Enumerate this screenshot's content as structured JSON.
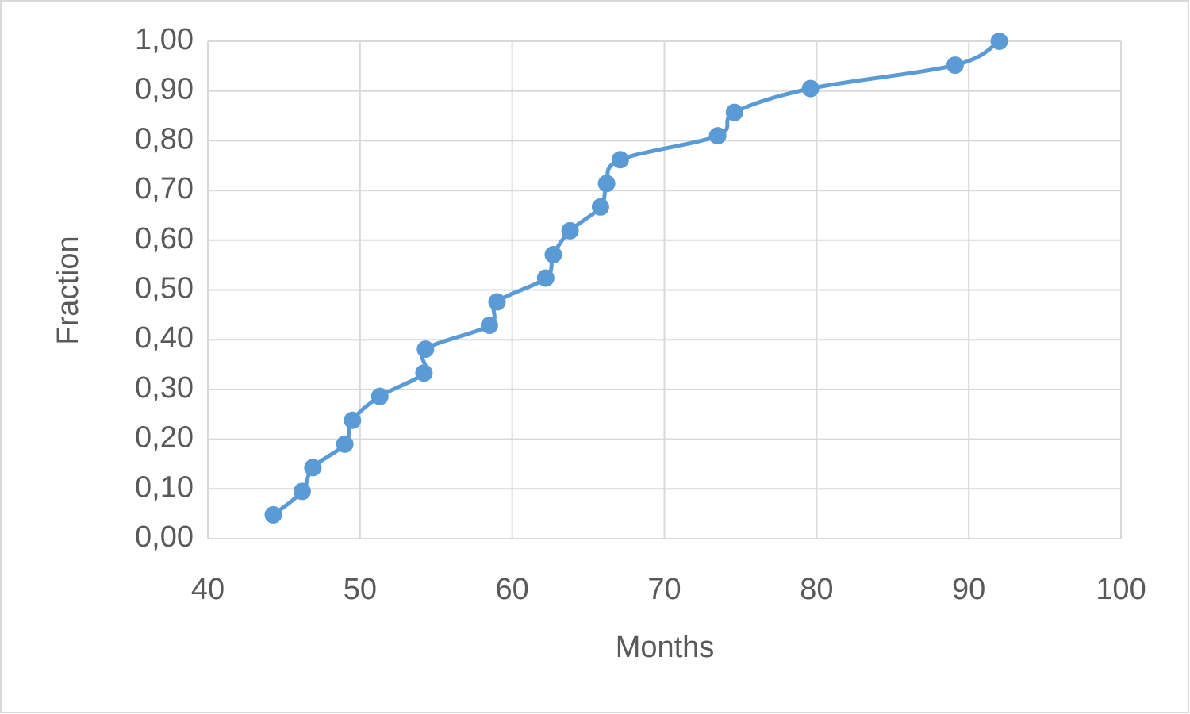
{
  "chart_data": {
    "type": "scatter",
    "x_label": "Months",
    "y_label": "Fraction",
    "x": [
      44.3,
      46.2,
      46.9,
      49.0,
      49.5,
      51.3,
      54.2,
      54.3,
      58.5,
      59.0,
      62.2,
      62.7,
      63.8,
      65.8,
      66.2,
      67.1,
      73.5,
      74.6,
      79.6,
      89.1,
      92.0
    ],
    "values": [
      0.048,
      0.095,
      0.143,
      0.19,
      0.238,
      0.286,
      0.333,
      0.381,
      0.429,
      0.476,
      0.524,
      0.571,
      0.619,
      0.667,
      0.714,
      0.762,
      0.81,
      0.857,
      0.905,
      0.952,
      1.0
    ],
    "color": "#5b9bd5",
    "smooth": true,
    "grid": true,
    "xlim": [
      40,
      100
    ],
    "xticks": [
      40,
      50,
      60,
      70,
      80,
      90,
      100
    ],
    "ylim": [
      0,
      1
    ],
    "yticks": [
      {
        "value": 0,
        "label": "0,00"
      },
      {
        "value": 0.1,
        "label": "0,10"
      },
      {
        "value": 0.2,
        "label": "0,20"
      },
      {
        "value": 0.3,
        "label": "0,30"
      },
      {
        "value": 0.4,
        "label": "0,40"
      },
      {
        "value": 0.5,
        "label": "0,50"
      },
      {
        "value": 0.6,
        "label": "0,60"
      },
      {
        "value": 0.7,
        "label": "0,70"
      },
      {
        "value": 0.8,
        "label": "0,80"
      },
      {
        "value": 0.9,
        "label": "0,90"
      },
      {
        "value": 1,
        "label": "1,00"
      }
    ]
  }
}
